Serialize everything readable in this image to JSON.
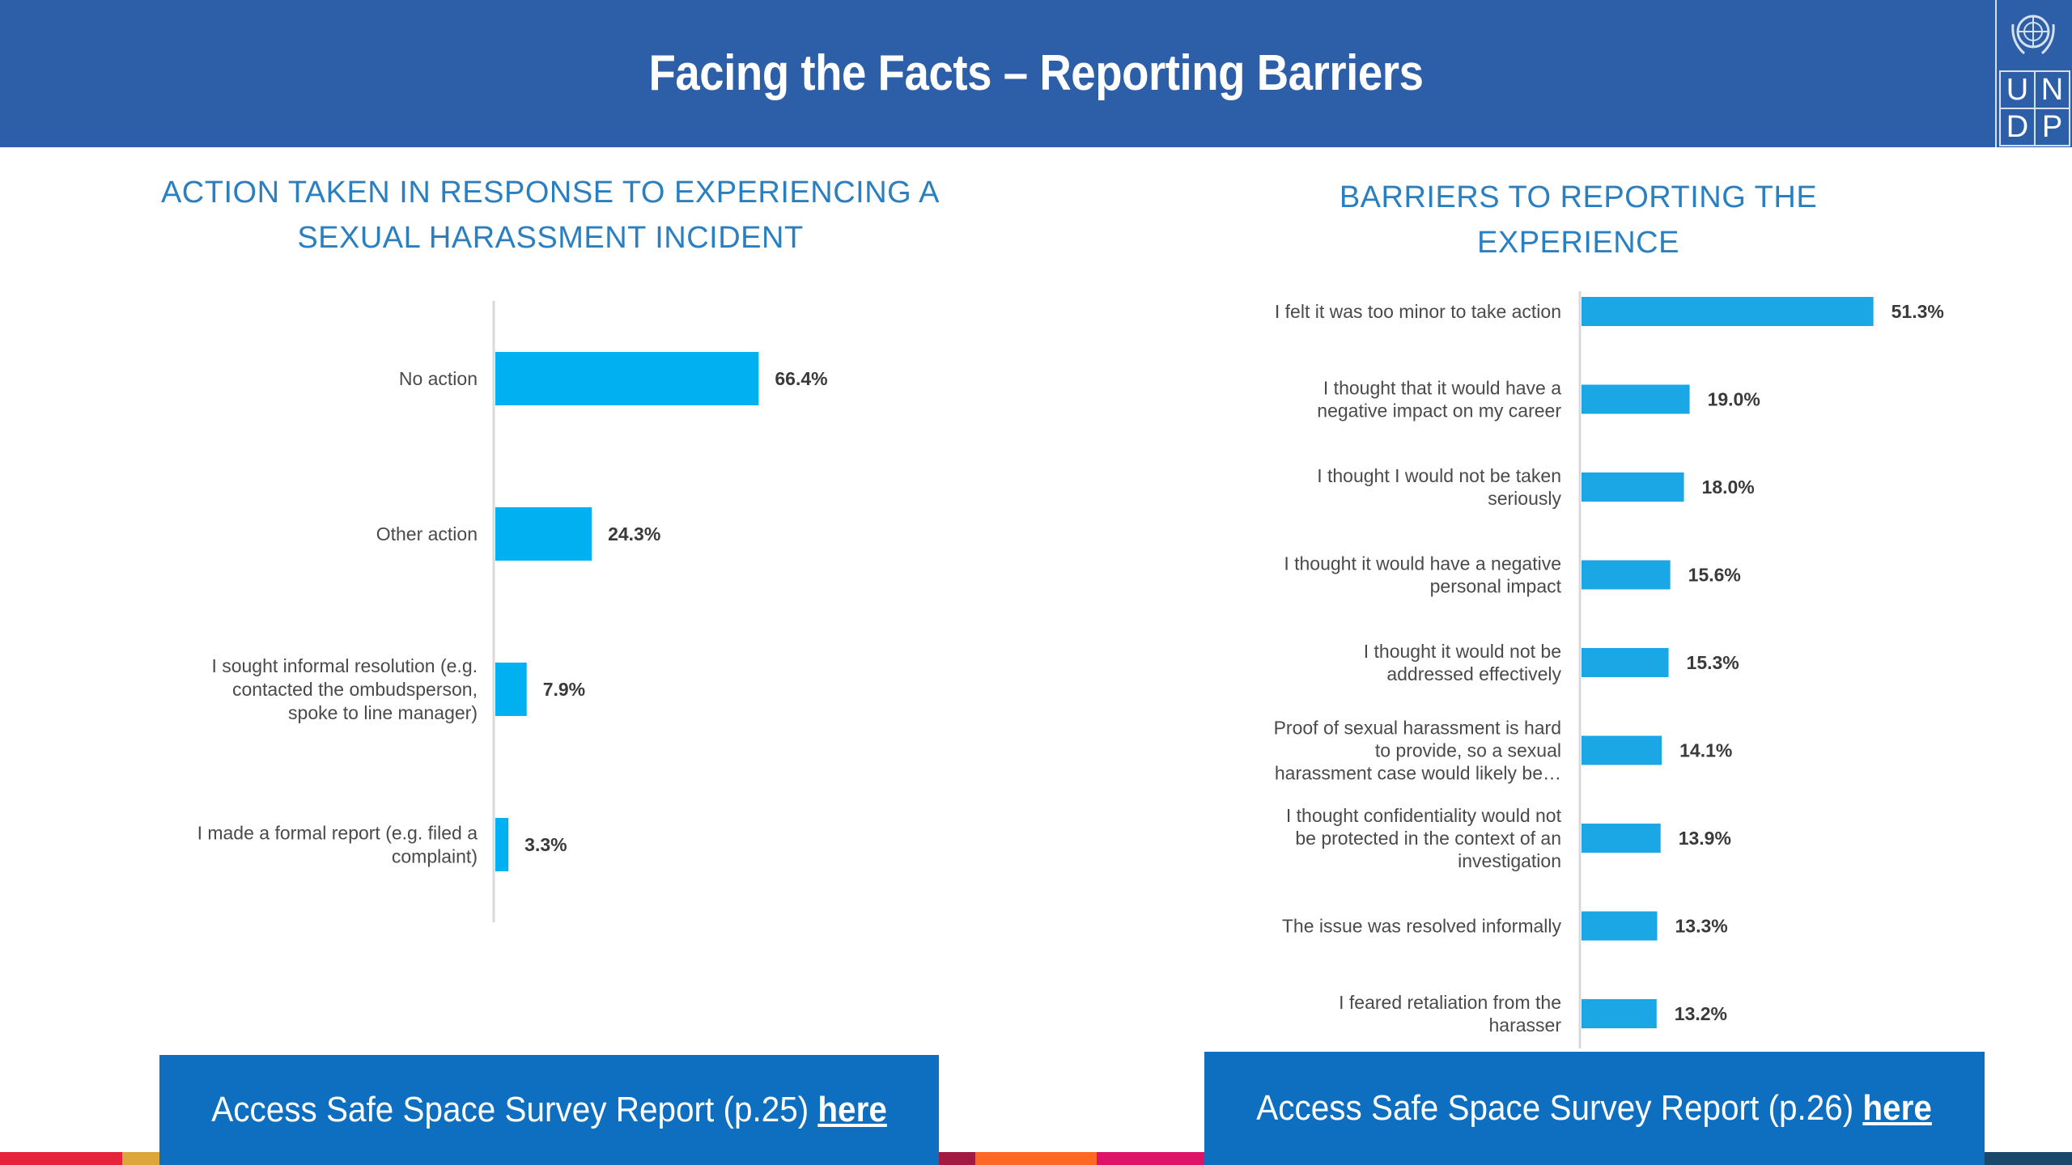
{
  "header": {
    "title": "Facing the Facts  – Reporting Barriers",
    "background": "#2d5ea8"
  },
  "logo": {
    "letters": [
      "U",
      "N",
      "D",
      "P"
    ],
    "emblem": "un-emblem-icon"
  },
  "chart_data": [
    {
      "type": "bar",
      "orientation": "horizontal",
      "title": "ACTION TAKEN IN RESPONSE TO EXPERIENCING A SEXUAL HARASSMENT INCIDENT",
      "categories": [
        [
          "No action"
        ],
        [
          "Other action"
        ],
        [
          "I sought informal resolution (e.g.",
          "contacted the ombudsperson,",
          "spoke to line manager)"
        ],
        [
          "I made a formal report (e.g. filed a",
          "complaint)"
        ]
      ],
      "values": [
        66.4,
        24.3,
        7.9,
        3.3
      ],
      "value_labels": [
        "66.4%",
        "24.3%",
        "7.9%",
        "3.3%"
      ],
      "unit": "%",
      "bar_color": "#00b0f0",
      "grid": false,
      "legend": "none"
    },
    {
      "type": "bar",
      "orientation": "horizontal",
      "title": "BARRIERS TO REPORTING THE EXPERIENCE",
      "categories": [
        [
          "I felt it was too minor to take action"
        ],
        [
          "I thought that it would have a",
          "negative impact on my career"
        ],
        [
          "I thought I would not be taken",
          "seriously"
        ],
        [
          "I thought it would have a negative",
          "personal impact"
        ],
        [
          "I thought it would not be",
          "addressed effectively"
        ],
        [
          "Proof of sexual harassment is hard",
          "to provide, so a sexual",
          "harassment case would likely be…"
        ],
        [
          "I thought confidentiality would not",
          "be protected in the context of an",
          "investigation"
        ],
        [
          "The issue was resolved informally"
        ],
        [
          "I feared retaliation from the",
          "harasser"
        ]
      ],
      "values": [
        51.3,
        19.0,
        18.0,
        15.6,
        15.3,
        14.1,
        13.9,
        13.3,
        13.2
      ],
      "value_labels": [
        "51.3%",
        "19.0%",
        "18.0%",
        "15.6%",
        "15.3%",
        "14.1%",
        "13.9%",
        "13.3%",
        "13.2%"
      ],
      "unit": "%",
      "bar_color": "#1ba6e6",
      "grid": false,
      "legend": "none"
    }
  ],
  "footer": {
    "left": {
      "text": "Access Safe Space Survey Report (p.25)",
      "link": "here"
    },
    "right": {
      "text": "Access Safe Space Survey Report (p.26)",
      "link": "here"
    },
    "background": "#0e6fc1"
  },
  "strip_colors": [
    "#e5243b",
    "#dda63a",
    "#4c9f38",
    "#c5192d",
    "#ff3a21",
    "#26bde2",
    "#fcc30b",
    "#a21942",
    "#fd6925",
    "#dd1367",
    "#fd9d24",
    "#bf8b2e",
    "#3f7e44",
    "#0a97d9",
    "#56c02b",
    "#00689d",
    "#19486a"
  ]
}
